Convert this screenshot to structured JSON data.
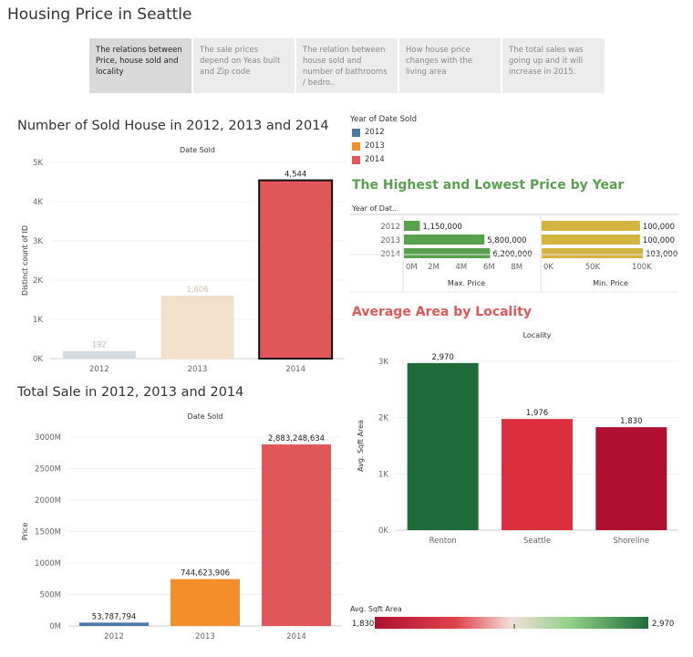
{
  "page": {
    "title": "Housing Price in Seattle"
  },
  "story_tabs": [
    {
      "label": "The relations between Price, house sold and locality",
      "active": true
    },
    {
      "label": "The sale prices depend on Yeas built and Zip code",
      "active": false
    },
    {
      "label": "The relation between house sold and number of bathrooms / bedro..",
      "active": false
    },
    {
      "label": "How house price changes with the living area",
      "active": false
    },
    {
      "label": "The total sales was going up and it will increase in 2015.",
      "active": false
    }
  ],
  "colors": {
    "c2012": "#4e79a7",
    "c2013": "#f28e2b",
    "c2014": "#e15759",
    "green_title": "#59a14f",
    "red_title": "#e15759",
    "min_bar": "#d4b440",
    "max_bar": "#59a14f"
  },
  "legend": {
    "title": "Year of Date Sold",
    "items": [
      {
        "label": "2012",
        "color": "#4e79a7"
      },
      {
        "label": "2013",
        "color": "#f28e2b"
      },
      {
        "label": "2014",
        "color": "#e15759"
      }
    ]
  },
  "chart_data": [
    {
      "id": "sold_count",
      "type": "bar",
      "title": "Number of Sold House in 2012, 2013 and 2014",
      "header": "Date Sold",
      "ylabel": "Distinct count of ID",
      "categories": [
        "2012",
        "2013",
        "2014"
      ],
      "values": [
        192,
        1606,
        4544
      ],
      "value_labels": [
        "192",
        "1,606",
        "4,544"
      ],
      "ylim": [
        0,
        5000
      ],
      "yticks": [
        0,
        1000,
        2000,
        3000,
        4000,
        5000
      ],
      "ytick_labels": [
        "0K",
        "1K",
        "2K",
        "3K",
        "4K",
        "5K"
      ],
      "bar_colors": [
        "#d3dbe3",
        "#f3e0cc",
        "#e15759"
      ],
      "label_colors": [
        "#b8c1cb",
        "#d6c2ae",
        "#222222"
      ],
      "highlighted": "2014"
    },
    {
      "id": "total_sale",
      "type": "bar",
      "title": "Total Sale in 2012, 2013 and 2014",
      "header": "Date Sold",
      "ylabel": "Price",
      "categories": [
        "2012",
        "2013",
        "2014"
      ],
      "values": [
        53787794,
        744623906,
        2883248634
      ],
      "value_labels": [
        "53,787,794",
        "744,623,906",
        "2,883,248,634"
      ],
      "ylim": [
        0,
        3000000000
      ],
      "yticks": [
        0,
        500000000,
        1000000000,
        1500000000,
        2000000000,
        2500000000,
        3000000000
      ],
      "ytick_labels": [
        "0M",
        "500M",
        "1000M",
        "1500M",
        "2000M",
        "2500M",
        "3000M"
      ],
      "bar_colors": [
        "#4e79a7",
        "#f28e2b",
        "#e15759"
      ]
    },
    {
      "id": "max_price",
      "type": "bar",
      "orientation": "horizontal",
      "title": "The Highest and Lowest Price by Year",
      "row_header": "Year of Dat..",
      "xlabel": "Max. Price",
      "categories": [
        "2012",
        "2013",
        "2014"
      ],
      "values": [
        1150000,
        5800000,
        6200000
      ],
      "value_labels": [
        "1,150,000",
        "5,800,000",
        "6,200,000"
      ],
      "xlim": [
        0,
        9000000
      ],
      "xticks": [
        0,
        2000000,
        4000000,
        6000000,
        8000000
      ],
      "xtick_labels": [
        "0M",
        "2M",
        "4M",
        "6M",
        "8M"
      ]
    },
    {
      "id": "min_price",
      "type": "bar",
      "orientation": "horizontal",
      "xlabel": "Min. Price",
      "categories": [
        "2012",
        "2013",
        "2014"
      ],
      "values": [
        100000,
        100000,
        103000
      ],
      "value_labels": [
        "100,000",
        "100,000",
        "103,000"
      ],
      "xlim": [
        0,
        140000
      ],
      "xticks": [
        0,
        50000,
        100000
      ],
      "xtick_labels": [
        "0K",
        "50K",
        "100K"
      ]
    },
    {
      "id": "avg_area",
      "type": "bar",
      "title": "Average Area by Locality",
      "header": "Locality",
      "ylabel": "Avg. Sqft Area",
      "categories": [
        "Renton",
        "Seattle",
        "Shoreline"
      ],
      "values": [
        2970,
        1976,
        1830
      ],
      "value_labels": [
        "2,970",
        "1,976",
        "1,830"
      ],
      "ylim": [
        0,
        3000
      ],
      "yticks": [
        0,
        1000,
        2000,
        3000
      ],
      "ytick_labels": [
        "0K",
        "1K",
        "2K",
        "3K"
      ],
      "bar_colors": [
        "#1f6b3a",
        "#dc2f3e",
        "#b01030"
      ],
      "color_legend": {
        "title": "Avg. Sqft Area",
        "min_label": "1,830",
        "max_label": "2,970"
      }
    }
  ]
}
